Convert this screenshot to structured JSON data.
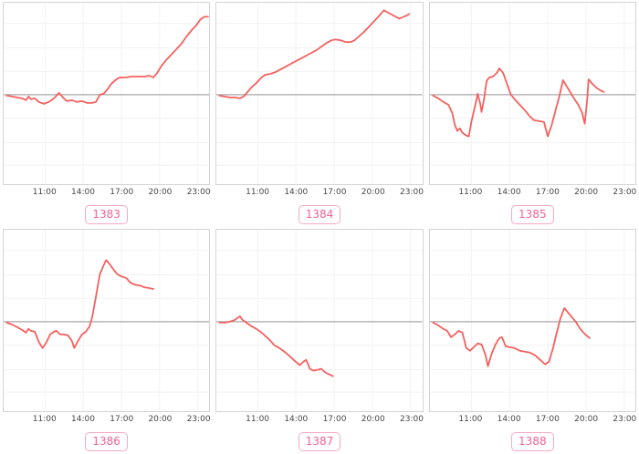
{
  "axis": {
    "tick_labels": [
      "11:00",
      "14:00",
      "17:00",
      "20:00",
      "23:00"
    ],
    "tick_hours": [
      11,
      14,
      17,
      20,
      23
    ],
    "x_domain_hours": [
      7.75,
      23.9
    ]
  },
  "style": {
    "line_color": "#f4605e",
    "zero_line_color": "#a8a8a8",
    "grid_color": "#f2f2f2",
    "panel_border_color": "#d4d4d4",
    "label_color": "#474747",
    "badge_text_color": "#f06397",
    "badge_border_color": "#f6aac3"
  },
  "chart_data": [
    {
      "type": "line",
      "badge": "1383",
      "x_ticks": [
        "11:00",
        "14:00",
        "17:00",
        "20:00",
        "23:00"
      ],
      "x_unit": "hour of day",
      "y_note": "relative units; 0 = gray reference line; +100/-100 = panel top/bottom edge; no y tick labels shown",
      "zero_line": true,
      "points": [
        [
          8.0,
          -1
        ],
        [
          8.4,
          -2
        ],
        [
          8.8,
          -3
        ],
        [
          9.2,
          -4
        ],
        [
          9.5,
          -6
        ],
        [
          9.7,
          -2
        ],
        [
          9.9,
          -5
        ],
        [
          10.2,
          -4
        ],
        [
          10.5,
          -8
        ],
        [
          10.9,
          -10
        ],
        [
          11.3,
          -8
        ],
        [
          11.7,
          -4
        ],
        [
          12.1,
          2
        ],
        [
          12.4,
          -3
        ],
        [
          12.7,
          -7
        ],
        [
          13.1,
          -6
        ],
        [
          13.5,
          -8
        ],
        [
          13.9,
          -7
        ],
        [
          14.3,
          -9
        ],
        [
          14.7,
          -9
        ],
        [
          15.0,
          -8
        ],
        [
          15.3,
          0
        ],
        [
          15.6,
          1
        ],
        [
          15.9,
          6
        ],
        [
          16.2,
          12
        ],
        [
          16.6,
          17
        ],
        [
          16.9,
          19
        ],
        [
          17.3,
          19
        ],
        [
          17.8,
          20
        ],
        [
          18.3,
          20
        ],
        [
          18.8,
          20
        ],
        [
          19.2,
          21
        ],
        [
          19.5,
          19
        ],
        [
          19.8,
          24
        ],
        [
          20.1,
          31
        ],
        [
          20.5,
          38
        ],
        [
          20.9,
          44
        ],
        [
          21.3,
          50
        ],
        [
          21.7,
          56
        ],
        [
          22.1,
          64
        ],
        [
          22.5,
          71
        ],
        [
          22.9,
          77
        ],
        [
          23.2,
          83
        ],
        [
          23.5,
          86
        ],
        [
          23.8,
          86
        ]
      ]
    },
    {
      "type": "line",
      "badge": "1384",
      "x_ticks": [
        "11:00",
        "14:00",
        "17:00",
        "20:00",
        "23:00"
      ],
      "x_unit": "hour of day",
      "y_note": "relative units; 0 = gray reference line; +100/-100 = panel top/bottom edge; no y tick labels shown",
      "zero_line": true,
      "points": [
        [
          8.0,
          -1
        ],
        [
          8.4,
          -2
        ],
        [
          8.8,
          -3
        ],
        [
          9.2,
          -3
        ],
        [
          9.6,
          -4
        ],
        [
          9.9,
          -2
        ],
        [
          10.2,
          3
        ],
        [
          10.5,
          8
        ],
        [
          10.9,
          13
        ],
        [
          11.3,
          19
        ],
        [
          11.6,
          22
        ],
        [
          12.0,
          23
        ],
        [
          12.4,
          25
        ],
        [
          12.8,
          28
        ],
        [
          13.2,
          31
        ],
        [
          13.6,
          34
        ],
        [
          14.0,
          37
        ],
        [
          14.4,
          40
        ],
        [
          14.8,
          43
        ],
        [
          15.2,
          46
        ],
        [
          15.6,
          49
        ],
        [
          16.0,
          53
        ],
        [
          16.4,
          57
        ],
        [
          16.8,
          60
        ],
        [
          17.1,
          61
        ],
        [
          17.5,
          60
        ],
        [
          17.9,
          58
        ],
        [
          18.3,
          58
        ],
        [
          18.6,
          60
        ],
        [
          19.0,
          65
        ],
        [
          19.4,
          70
        ],
        [
          19.8,
          76
        ],
        [
          20.2,
          82
        ],
        [
          20.6,
          88
        ],
        [
          20.9,
          93
        ],
        [
          21.3,
          90
        ],
        [
          21.7,
          87
        ],
        [
          22.1,
          84
        ],
        [
          22.5,
          86
        ],
        [
          22.9,
          89
        ]
      ]
    },
    {
      "type": "line",
      "badge": "1385",
      "x_ticks": [
        "11:00",
        "14:00",
        "17:00",
        "20:00",
        "23:00"
      ],
      "x_unit": "hour of day",
      "y_note": "relative units; 0 = gray reference line; +100/-100 = panel top/bottom edge; no y tick labels shown",
      "zero_line": true,
      "points": [
        [
          8.0,
          -1
        ],
        [
          8.4,
          -4
        ],
        [
          8.8,
          -8
        ],
        [
          9.2,
          -11
        ],
        [
          9.5,
          -20
        ],
        [
          9.7,
          -33
        ],
        [
          9.9,
          -40
        ],
        [
          10.1,
          -37
        ],
        [
          10.3,
          -42
        ],
        [
          10.6,
          -45
        ],
        [
          10.8,
          -46
        ],
        [
          11.0,
          -30
        ],
        [
          11.3,
          -12
        ],
        [
          11.5,
          1
        ],
        [
          11.7,
          -10
        ],
        [
          11.8,
          -19
        ],
        [
          12.0,
          -5
        ],
        [
          12.2,
          15
        ],
        [
          12.4,
          19
        ],
        [
          12.7,
          20
        ],
        [
          13.0,
          24
        ],
        [
          13.2,
          29
        ],
        [
          13.5,
          24
        ],
        [
          13.8,
          12
        ],
        [
          14.1,
          0
        ],
        [
          14.4,
          -5
        ],
        [
          14.8,
          -11
        ],
        [
          15.2,
          -17
        ],
        [
          15.6,
          -24
        ],
        [
          15.9,
          -28
        ],
        [
          16.3,
          -29
        ],
        [
          16.7,
          -30
        ],
        [
          17.0,
          -46
        ],
        [
          17.3,
          -34
        ],
        [
          17.6,
          -18
        ],
        [
          17.9,
          -2
        ],
        [
          18.2,
          16
        ],
        [
          18.5,
          9
        ],
        [
          18.8,
          2
        ],
        [
          19.1,
          -5
        ],
        [
          19.4,
          -11
        ],
        [
          19.7,
          -20
        ],
        [
          19.9,
          -32
        ],
        [
          20.1,
          -5
        ],
        [
          20.2,
          17
        ],
        [
          20.5,
          12
        ],
        [
          20.8,
          8
        ],
        [
          21.1,
          5
        ],
        [
          21.4,
          3
        ]
      ]
    },
    {
      "type": "line",
      "badge": "1386",
      "x_ticks": [
        "11:00",
        "14:00",
        "17:00",
        "20:00",
        "23:00"
      ],
      "x_unit": "hour of day",
      "y_note": "relative units; 0 = gray reference line; +100/-100 = panel top/bottom edge; no y tick labels shown",
      "zero_line": true,
      "points": [
        [
          8.0,
          -1
        ],
        [
          8.4,
          -3
        ],
        [
          8.8,
          -6
        ],
        [
          9.2,
          -9
        ],
        [
          9.5,
          -12
        ],
        [
          9.7,
          -8
        ],
        [
          9.9,
          -10
        ],
        [
          10.2,
          -11
        ],
        [
          10.5,
          -22
        ],
        [
          10.8,
          -29
        ],
        [
          11.1,
          -23
        ],
        [
          11.4,
          -14
        ],
        [
          11.7,
          -11
        ],
        [
          11.9,
          -10
        ],
        [
          12.2,
          -14
        ],
        [
          12.5,
          -14
        ],
        [
          12.8,
          -15
        ],
        [
          13.1,
          -21
        ],
        [
          13.3,
          -29
        ],
        [
          13.6,
          -21
        ],
        [
          13.9,
          -14
        ],
        [
          14.2,
          -11
        ],
        [
          14.5,
          -5
        ],
        [
          14.7,
          5
        ],
        [
          15.0,
          28
        ],
        [
          15.3,
          52
        ],
        [
          15.6,
          62
        ],
        [
          15.8,
          68
        ],
        [
          16.1,
          63
        ],
        [
          16.4,
          57
        ],
        [
          16.7,
          52
        ],
        [
          17.0,
          50
        ],
        [
          17.4,
          48
        ],
        [
          17.7,
          43
        ],
        [
          18.0,
          41
        ],
        [
          18.4,
          40
        ],
        [
          18.8,
          38
        ],
        [
          19.2,
          37
        ],
        [
          19.5,
          36
        ]
      ]
    },
    {
      "type": "line",
      "badge": "1387",
      "x_ticks": [
        "11:00",
        "14:00",
        "17:00",
        "20:00",
        "23:00"
      ],
      "x_unit": "hour of day",
      "y_note": "relative units; 0 = gray reference line; +100/-100 = panel top/bottom edge; no y tick labels shown",
      "zero_line": true,
      "points": [
        [
          8.0,
          -1
        ],
        [
          8.4,
          -1
        ],
        [
          8.8,
          0
        ],
        [
          9.2,
          2
        ],
        [
          9.6,
          6
        ],
        [
          9.8,
          2
        ],
        [
          10.1,
          -1
        ],
        [
          10.5,
          -5
        ],
        [
          10.9,
          -8
        ],
        [
          11.3,
          -12
        ],
        [
          11.7,
          -17
        ],
        [
          12.0,
          -21
        ],
        [
          12.3,
          -26
        ],
        [
          12.7,
          -29
        ],
        [
          13.1,
          -33
        ],
        [
          13.5,
          -38
        ],
        [
          13.9,
          -43
        ],
        [
          14.3,
          -48
        ],
        [
          14.6,
          -44
        ],
        [
          14.8,
          -42
        ],
        [
          15.1,
          -52
        ],
        [
          15.4,
          -54
        ],
        [
          15.7,
          -53
        ],
        [
          16.0,
          -52
        ],
        [
          16.3,
          -56
        ],
        [
          16.6,
          -58
        ],
        [
          16.9,
          -60
        ]
      ]
    },
    {
      "type": "line",
      "badge": "1388",
      "x_ticks": [
        "11:00",
        "14:00",
        "17:00",
        "20:00",
        "23:00"
      ],
      "x_unit": "hour of day",
      "y_note": "relative units; 0 = gray reference line; +100/-100 = panel top/bottom edge; no y tick labels shown",
      "zero_line": true,
      "points": [
        [
          8.0,
          -1
        ],
        [
          8.4,
          -4
        ],
        [
          8.8,
          -8
        ],
        [
          9.1,
          -10
        ],
        [
          9.4,
          -17
        ],
        [
          9.7,
          -14
        ],
        [
          10.0,
          -10
        ],
        [
          10.3,
          -12
        ],
        [
          10.6,
          -29
        ],
        [
          10.9,
          -32
        ],
        [
          11.2,
          -28
        ],
        [
          11.5,
          -24
        ],
        [
          11.8,
          -25
        ],
        [
          12.1,
          -36
        ],
        [
          12.3,
          -49
        ],
        [
          12.6,
          -35
        ],
        [
          12.9,
          -25
        ],
        [
          13.2,
          -18
        ],
        [
          13.4,
          -17
        ],
        [
          13.7,
          -27
        ],
        [
          14.0,
          -28
        ],
        [
          14.4,
          -29
        ],
        [
          14.8,
          -32
        ],
        [
          15.2,
          -33
        ],
        [
          15.6,
          -34
        ],
        [
          16.0,
          -37
        ],
        [
          16.4,
          -42
        ],
        [
          16.8,
          -47
        ],
        [
          17.1,
          -44
        ],
        [
          17.4,
          -30
        ],
        [
          17.7,
          -12
        ],
        [
          18.0,
          4
        ],
        [
          18.3,
          15
        ],
        [
          18.6,
          10
        ],
        [
          18.9,
          5
        ],
        [
          19.2,
          0
        ],
        [
          19.5,
          -7
        ],
        [
          19.8,
          -12
        ],
        [
          20.1,
          -16
        ],
        [
          20.3,
          -18
        ]
      ]
    }
  ]
}
